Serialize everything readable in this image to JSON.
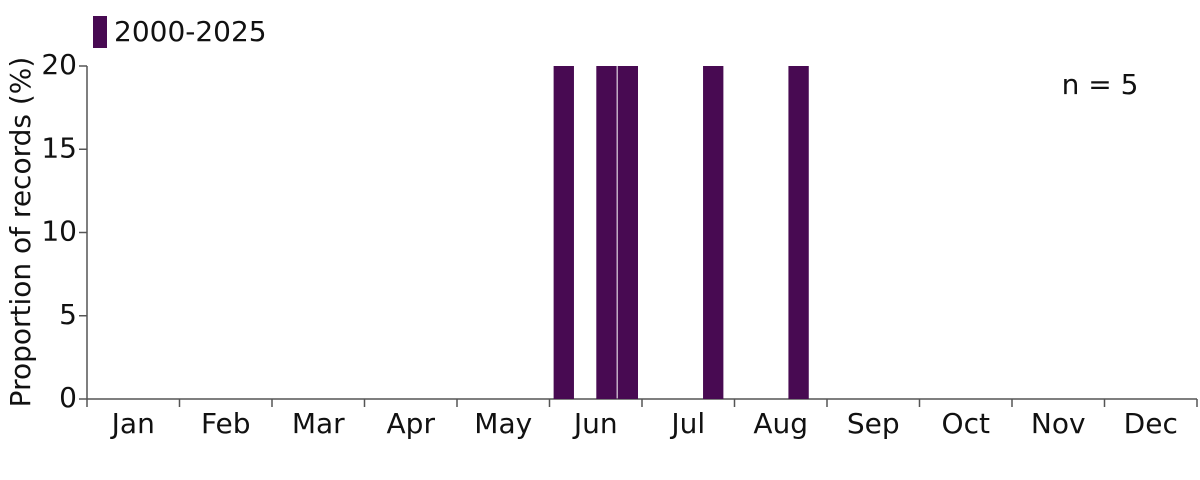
{
  "chart_data": {
    "type": "bar",
    "y_label": "Proportion of records (%)",
    "annotation": "n = 5",
    "categories": [
      "Jan",
      "Feb",
      "Mar",
      "Apr",
      "May",
      "Jun",
      "Jul",
      "Aug",
      "Sep",
      "Oct",
      "Nov",
      "Dec"
    ],
    "series": [
      {
        "name": "2000-2025",
        "color": "#480a52",
        "x": [
          22,
          24,
          25,
          29,
          33
        ],
        "values": [
          20,
          20,
          20,
          20,
          20
        ]
      }
    ],
    "xlim": [
      0,
      52
    ],
    "ylim": [
      0,
      20
    ],
    "yticks": [
      0,
      5,
      10,
      15,
      20
    ],
    "grid": false,
    "legend": "top-left"
  }
}
